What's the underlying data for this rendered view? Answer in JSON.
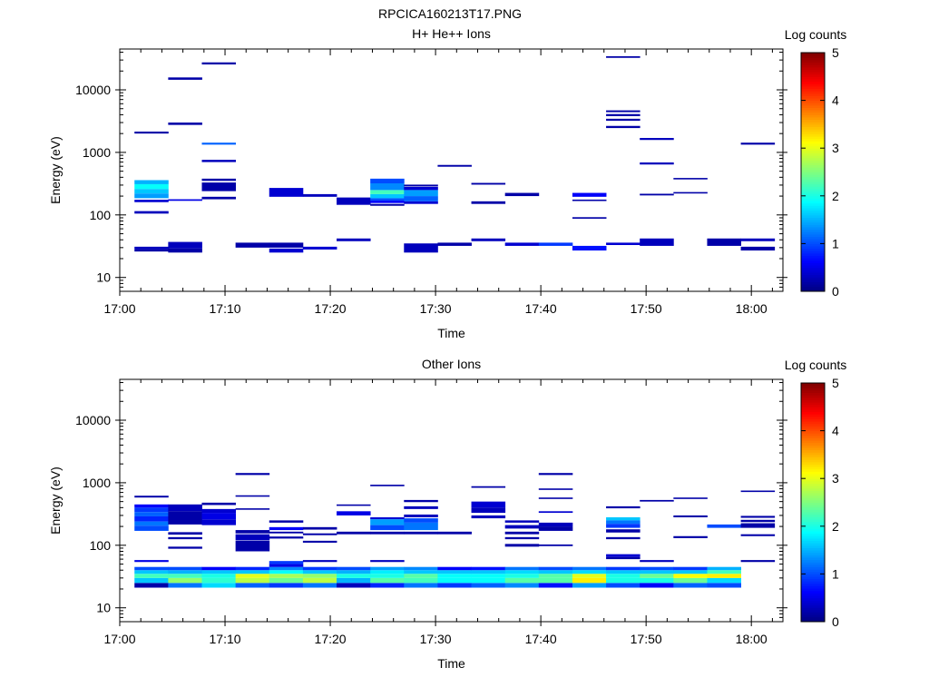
{
  "figure_title": "RPCICA160213T17.PNG",
  "colorscale": [
    "#00007f",
    "#0000ff",
    "#007fff",
    "#00ffff",
    "#7fff7f",
    "#ffff00",
    "#ff7f00",
    "#ff0000",
    "#7f0000"
  ],
  "chart_data": [
    {
      "type": "heatmap",
      "title": "H+ He++ Ions",
      "xlabel": "Time",
      "ylabel": "Energy (eV)",
      "colorbar_label": "Log counts",
      "colorbar_range": [
        0,
        5
      ],
      "colorbar_ticks": [
        "0",
        "1",
        "2",
        "3",
        "4",
        "5"
      ],
      "x_range_min": [
        0,
        63
      ],
      "x_ticks": [
        {
          "min": 0,
          "label": "17:00"
        },
        {
          "min": 10,
          "label": "17:10"
        },
        {
          "min": 20,
          "label": "17:20"
        },
        {
          "min": 30,
          "label": "17:30"
        },
        {
          "min": 40,
          "label": "17:40"
        },
        {
          "min": 50,
          "label": "17:50"
        },
        {
          "min": 60,
          "label": "18:00"
        }
      ],
      "y_scale": "log",
      "y_range": [
        6,
        45000
      ],
      "y_ticks": [
        {
          "v": 10,
          "label": "10"
        },
        {
          "v": 100,
          "label": "100"
        },
        {
          "v": 1000,
          "label": "1000"
        },
        {
          "v": 10000,
          "label": "10000"
        }
      ],
      "cells": [
        [
          1.4,
          4.6,
          28,
          31,
          0.3
        ],
        [
          1.4,
          4.6,
          26,
          28,
          0.2
        ],
        [
          1.4,
          4.6,
          310,
          360,
          1.5
        ],
        [
          1.4,
          4.6,
          260,
          310,
          1.9
        ],
        [
          1.4,
          4.6,
          220,
          260,
          1.6
        ],
        [
          1.4,
          4.6,
          185,
          220,
          1.4
        ],
        [
          1.4,
          4.6,
          160,
          175,
          0.4
        ],
        [
          1.4,
          4.6,
          105,
          115,
          0.3
        ],
        [
          1.4,
          4.6,
          2000,
          2150,
          0.2
        ],
        [
          4.6,
          7.8,
          29,
          37,
          0.3
        ],
        [
          4.6,
          7.8,
          25,
          29,
          0.2
        ],
        [
          4.6,
          7.8,
          14500,
          15800,
          0.2
        ],
        [
          4.6,
          7.8,
          2750,
          3000,
          0.2
        ],
        [
          4.6,
          7.8,
          168,
          178,
          0.5
        ],
        [
          7.8,
          11,
          25500,
          27500,
          0.2
        ],
        [
          7.8,
          11,
          1330,
          1430,
          1.1
        ],
        [
          7.8,
          11,
          700,
          760,
          0.3
        ],
        [
          7.8,
          11,
          350,
          380,
          0.2
        ],
        [
          7.8,
          11,
          240,
          330,
          0.2
        ],
        [
          7.8,
          11,
          178,
          195,
          0.2
        ],
        [
          11,
          14.2,
          30,
          36,
          0.2
        ],
        [
          14.2,
          17.4,
          30,
          36,
          0.2
        ],
        [
          14.2,
          17.4,
          25,
          29,
          0.4
        ],
        [
          14.2,
          17.4,
          195,
          270,
          0.4
        ],
        [
          17.4,
          20.6,
          28,
          31,
          0.4
        ],
        [
          17.4,
          20.6,
          195,
          215,
          0.3
        ],
        [
          20.6,
          23.8,
          38,
          42,
          0.3
        ],
        [
          20.6,
          23.8,
          145,
          190,
          0.3
        ],
        [
          23.8,
          27,
          140,
          150,
          0.2
        ],
        [
          23.8,
          27,
          155,
          170,
          0.6
        ],
        [
          23.8,
          27,
          170,
          185,
          1.0
        ],
        [
          23.8,
          27,
          185,
          215,
          1.6
        ],
        [
          23.8,
          27,
          215,
          250,
          2.2
        ],
        [
          23.8,
          27,
          250,
          320,
          1.3
        ],
        [
          23.8,
          27,
          320,
          380,
          1.0
        ],
        [
          27,
          30.2,
          25,
          35,
          0.3
        ],
        [
          27,
          30.2,
          150,
          165,
          0.4
        ],
        [
          27,
          30.2,
          165,
          200,
          1.1
        ],
        [
          27,
          30.2,
          200,
          250,
          1.4
        ],
        [
          27,
          30.2,
          250,
          280,
          0.4
        ],
        [
          27,
          30.2,
          285,
          305,
          0.2
        ],
        [
          30.2,
          33.4,
          32,
          36,
          0.2
        ],
        [
          30.2,
          33.4,
          590,
          630,
          0.2
        ],
        [
          33.4,
          36.6,
          38,
          42,
          0.3
        ],
        [
          33.4,
          36.6,
          150,
          165,
          0.2
        ],
        [
          33.4,
          36.6,
          305,
          325,
          0.2
        ],
        [
          36.6,
          39.8,
          32,
          36,
          0.4
        ],
        [
          36.6,
          39.8,
          200,
          225,
          0.2
        ],
        [
          39.8,
          43,
          32,
          36,
          0.9
        ],
        [
          43,
          46.2,
          27,
          32,
          0.7
        ],
        [
          43,
          46.2,
          87,
          92,
          0.2
        ],
        [
          43,
          46.2,
          168,
          176,
          0.2
        ],
        [
          43,
          46.2,
          195,
          225,
          0.6
        ],
        [
          46.2,
          49.4,
          33,
          36,
          0.4
        ],
        [
          46.2,
          49.4,
          32500,
          34500,
          0.2
        ],
        [
          46.2,
          49.4,
          4400,
          4700,
          0.2
        ],
        [
          46.2,
          49.4,
          3800,
          4100,
          0.2
        ],
        [
          46.2,
          49.4,
          3200,
          3450,
          0.2
        ],
        [
          46.2,
          49.4,
          2450,
          2650,
          0.2
        ],
        [
          49.4,
          52.6,
          32,
          42,
          0.3
        ],
        [
          49.4,
          52.6,
          1580,
          1700,
          0.3
        ],
        [
          49.4,
          52.6,
          640,
          690,
          0.3
        ],
        [
          49.4,
          52.6,
          205,
          218,
          0.2
        ],
        [
          52.6,
          55.8,
          370,
          390,
          0.2
        ],
        [
          52.6,
          55.8,
          220,
          232,
          0.2
        ],
        [
          55.8,
          59,
          32,
          42,
          0.2
        ],
        [
          59,
          62.2,
          38,
          42,
          0.3
        ],
        [
          59,
          62.2,
          27,
          31,
          0.2
        ],
        [
          59,
          62.2,
          1330,
          1430,
          0.2
        ]
      ]
    },
    {
      "type": "heatmap",
      "title": "Other Ions",
      "xlabel": "Time",
      "ylabel": "Energy (eV)",
      "colorbar_label": "Log counts",
      "colorbar_range": [
        0,
        5
      ],
      "colorbar_ticks": [
        "0",
        "1",
        "2",
        "3",
        "4",
        "5"
      ],
      "x_range_min": [
        0,
        63
      ],
      "x_ticks": [
        {
          "min": 0,
          "label": "17:00"
        },
        {
          "min": 10,
          "label": "17:10"
        },
        {
          "min": 20,
          "label": "17:20"
        },
        {
          "min": 30,
          "label": "17:30"
        },
        {
          "min": 40,
          "label": "17:40"
        },
        {
          "min": 50,
          "label": "17:50"
        },
        {
          "min": 60,
          "label": "18:00"
        }
      ],
      "y_scale": "log",
      "y_range": [
        6,
        45000
      ],
      "y_ticks": [
        {
          "v": 10,
          "label": "10"
        },
        {
          "v": 100,
          "label": "100"
        },
        {
          "v": 1000,
          "label": "1000"
        },
        {
          "v": 10000,
          "label": "10000"
        }
      ],
      "band_edges": [
        21,
        25,
        30,
        35,
        40,
        45
      ],
      "band_values": [
        [
          0.2,
          1.6,
          2.2,
          1.6,
          1.0
        ],
        [
          1.2,
          2.6,
          2.2,
          1.5,
          1.0
        ],
        [
          1.7,
          2.1,
          2.0,
          1.6,
          0.6
        ],
        [
          1.1,
          2.8,
          3.0,
          1.6,
          0.8
        ],
        [
          0.9,
          2.4,
          2.7,
          1.9,
          1.3
        ],
        [
          1.2,
          2.8,
          2.6,
          1.6,
          0.9
        ],
        [
          0.3,
          1.5,
          2.0,
          1.5,
          1.0
        ],
        [
          0.8,
          2.3,
          2.0,
          1.8,
          1.4
        ],
        [
          1.2,
          2.2,
          2.3,
          1.6,
          1.3
        ],
        [
          0.9,
          1.9,
          1.9,
          1.6,
          0.6
        ],
        [
          1.1,
          1.9,
          1.9,
          1.6,
          0.7
        ],
        [
          1.3,
          2.3,
          2.0,
          1.7,
          1.2
        ],
        [
          0.7,
          2.3,
          2.3,
          1.6,
          1.0
        ],
        [
          1.4,
          3.2,
          3.0,
          1.7,
          1.2
        ],
        [
          1.0,
          2.0,
          2.0,
          1.6,
          0.9
        ],
        [
          0.6,
          2.0,
          2.4,
          1.6,
          1.0
        ],
        [
          1.1,
          2.4,
          3.1,
          1.6,
          0.9
        ],
        [
          1.0,
          1.7,
          3.2,
          2.2,
          1.5
        ]
      ],
      "cells": [
        [
          1.4,
          4.6,
          580,
          620,
          0.2
        ],
        [
          1.4,
          4.6,
          400,
          450,
          0.6
        ],
        [
          1.4,
          4.6,
          340,
          400,
          0.9
        ],
        [
          1.4,
          4.6,
          290,
          340,
          1.1
        ],
        [
          1.4,
          4.6,
          240,
          290,
          0.8
        ],
        [
          1.4,
          4.6,
          205,
          240,
          1.2
        ],
        [
          1.4,
          4.6,
          170,
          205,
          1.0
        ],
        [
          1.4,
          4.6,
          54,
          58,
          0.5
        ],
        [
          4.6,
          7.8,
          350,
          450,
          0.3
        ],
        [
          4.6,
          7.8,
          215,
          350,
          0.2
        ],
        [
          4.6,
          7.8,
          148,
          162,
          0.2
        ],
        [
          4.6,
          7.8,
          125,
          135,
          0.2
        ],
        [
          4.6,
          7.8,
          88,
          95,
          0.2
        ],
        [
          7.8,
          11,
          440,
          480,
          0.2
        ],
        [
          7.8,
          11,
          330,
          380,
          0.4
        ],
        [
          7.8,
          11,
          260,
          330,
          0.5
        ],
        [
          7.8,
          11,
          210,
          260,
          0.4
        ],
        [
          11,
          14.2,
          1330,
          1430,
          0.2
        ],
        [
          11,
          14.2,
          600,
          630,
          0.2
        ],
        [
          11,
          14.2,
          370,
          390,
          0.2
        ],
        [
          11,
          14.2,
          155,
          175,
          0.2
        ],
        [
          11,
          14.2,
          120,
          150,
          0.3
        ],
        [
          11,
          14.2,
          80,
          118,
          0.2
        ],
        [
          14.2,
          17.4,
          230,
          250,
          0.2
        ],
        [
          14.2,
          17.4,
          175,
          195,
          0.6
        ],
        [
          14.2,
          17.4,
          155,
          165,
          0.2
        ],
        [
          14.2,
          17.4,
          128,
          138,
          0.2
        ],
        [
          14.2,
          17.4,
          50,
          56,
          0.9
        ],
        [
          14.2,
          17.4,
          45,
          50,
          0.5
        ],
        [
          17.4,
          20.6,
          178,
          195,
          0.2
        ],
        [
          17.4,
          20.6,
          145,
          155,
          0.2
        ],
        [
          17.4,
          20.6,
          110,
          118,
          0.2
        ],
        [
          17.4,
          20.6,
          54,
          58,
          0.3
        ],
        [
          20.6,
          23.8,
          430,
          450,
          0.2
        ],
        [
          20.6,
          23.8,
          300,
          350,
          0.5
        ],
        [
          20.6,
          23.8,
          150,
          165,
          0.2
        ],
        [
          23.8,
          27,
          880,
          930,
          0.2
        ],
        [
          23.8,
          27,
          260,
          280,
          0.4
        ],
        [
          23.8,
          27,
          210,
          260,
          1.4
        ],
        [
          23.8,
          27,
          175,
          210,
          1.0
        ],
        [
          23.8,
          27,
          150,
          165,
          0.2
        ],
        [
          23.8,
          27,
          54,
          58,
          0.3
        ],
        [
          27,
          30.2,
          490,
          530,
          0.2
        ],
        [
          27,
          30.2,
          380,
          420,
          0.3
        ],
        [
          27,
          30.2,
          280,
          310,
          0.3
        ],
        [
          27,
          30.2,
          230,
          270,
          1.0
        ],
        [
          27,
          30.2,
          175,
          230,
          1.2
        ],
        [
          27,
          30.2,
          150,
          165,
          0.2
        ],
        [
          30.2,
          33.4,
          150,
          165,
          0.2
        ],
        [
          33.4,
          36.6,
          830,
          880,
          0.2
        ],
        [
          33.4,
          36.6,
          400,
          500,
          0.4
        ],
        [
          33.4,
          36.6,
          330,
          400,
          0.3
        ],
        [
          33.4,
          36.6,
          270,
          300,
          0.3
        ],
        [
          36.6,
          39.8,
          230,
          250,
          0.3
        ],
        [
          36.6,
          39.8,
          185,
          210,
          0.3
        ],
        [
          36.6,
          39.8,
          150,
          165,
          0.2
        ],
        [
          36.6,
          39.8,
          125,
          135,
          0.2
        ],
        [
          36.6,
          39.8,
          95,
          105,
          0.2
        ],
        [
          39.8,
          43,
          1330,
          1430,
          0.2
        ],
        [
          39.8,
          43,
          770,
          810,
          0.2
        ],
        [
          39.8,
          43,
          550,
          580,
          0.2
        ],
        [
          39.8,
          43,
          330,
          350,
          0.4
        ],
        [
          39.8,
          43,
          200,
          230,
          0.3
        ],
        [
          39.8,
          43,
          170,
          200,
          0.2
        ],
        [
          39.8,
          43,
          97,
          103,
          0.2
        ],
        [
          46.2,
          49.4,
          390,
          420,
          0.2
        ],
        [
          46.2,
          49.4,
          250,
          280,
          1.6
        ],
        [
          46.2,
          49.4,
          220,
          250,
          1.2
        ],
        [
          46.2,
          49.4,
          190,
          220,
          0.9
        ],
        [
          46.2,
          49.4,
          160,
          180,
          0.2
        ],
        [
          46.2,
          49.4,
          125,
          135,
          0.2
        ],
        [
          46.2,
          49.4,
          65,
          72,
          0.4
        ],
        [
          46.2,
          49.4,
          60,
          65,
          0.2
        ],
        [
          49.4,
          52.6,
          500,
          530,
          0.2
        ],
        [
          49.4,
          52.6,
          54,
          58,
          0.3
        ],
        [
          52.6,
          55.8,
          550,
          580,
          0.2
        ],
        [
          52.6,
          55.8,
          280,
          300,
          0.2
        ],
        [
          52.6,
          55.8,
          130,
          140,
          0.2
        ],
        [
          55.8,
          59,
          190,
          215,
          1.0
        ],
        [
          59,
          62.2,
          720,
          750,
          0.2
        ],
        [
          59,
          62.2,
          275,
          295,
          0.2
        ],
        [
          59,
          62.2,
          235,
          255,
          0.2
        ],
        [
          59,
          62.2,
          190,
          225,
          0.2
        ],
        [
          59,
          62.2,
          140,
          150,
          0.2
        ],
        [
          59,
          62.2,
          54,
          58,
          0.2
        ]
      ]
    }
  ]
}
